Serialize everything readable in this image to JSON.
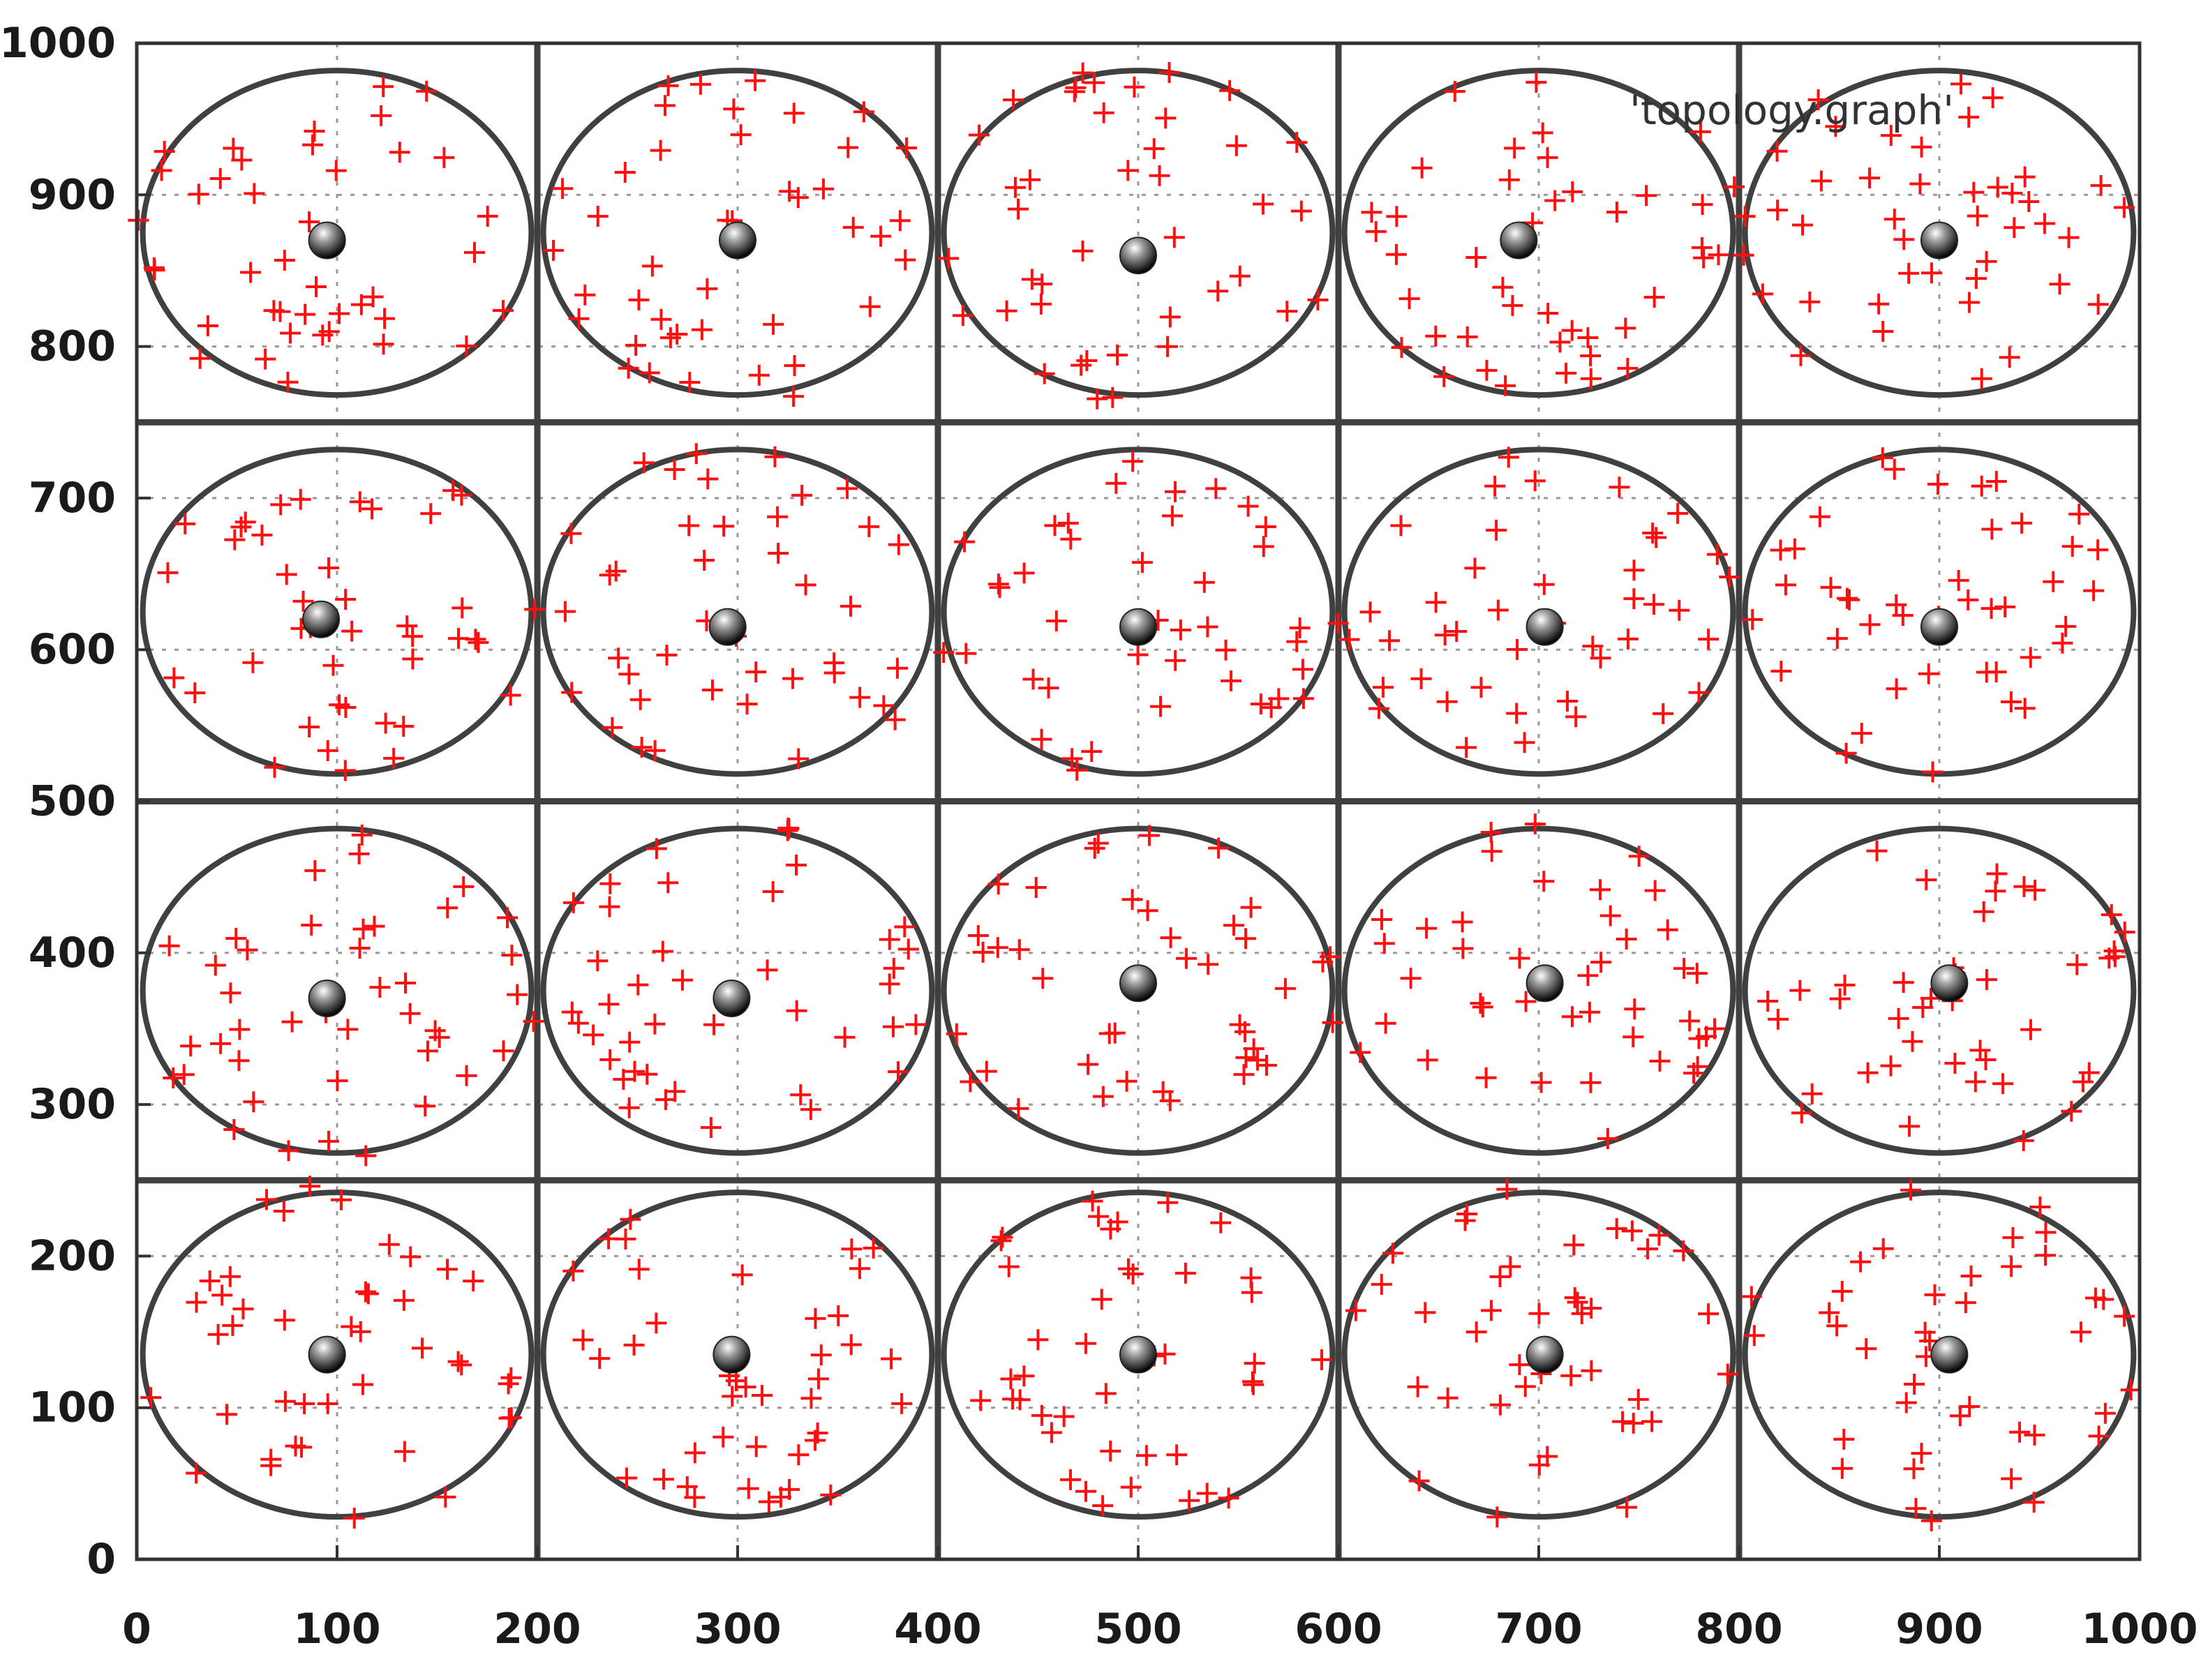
{
  "chart_data": {
    "type": "scatter",
    "legend": "'topology.graph'",
    "legend_position": "top-right",
    "xlim": [
      0,
      1000
    ],
    "ylim": [
      0,
      1000
    ],
    "x_ticks": [
      0,
      100,
      200,
      300,
      400,
      500,
      600,
      700,
      800,
      900,
      1000
    ],
    "y_ticks": [
      0,
      100,
      200,
      300,
      400,
      500,
      600,
      700,
      800,
      900,
      1000
    ],
    "x_tick_labels": [
      "0",
      "100",
      "200",
      "300",
      "400",
      "500",
      "600",
      "700",
      "800",
      "900",
      "1000"
    ],
    "y_tick_labels": [
      "0",
      "100",
      "200",
      "300",
      "400",
      "500",
      "600",
      "700",
      "800",
      "900",
      "1000"
    ],
    "grid": true,
    "colors": {
      "points": "#ff1010",
      "circles": "#404040",
      "partitions": "#404040",
      "grid": "#999999",
      "axes": "#333333"
    },
    "partition_x": [
      200,
      400,
      600,
      800
    ],
    "partition_y": [
      250,
      500,
      750
    ],
    "cluster_heads": [
      {
        "x": 95,
        "y": 870
      },
      {
        "x": 300,
        "y": 870
      },
      {
        "x": 500,
        "y": 860
      },
      {
        "x": 690,
        "y": 870
      },
      {
        "x": 900,
        "y": 870
      },
      {
        "x": 92,
        "y": 620
      },
      {
        "x": 295,
        "y": 615
      },
      {
        "x": 500,
        "y": 615
      },
      {
        "x": 703,
        "y": 615
      },
      {
        "x": 900,
        "y": 615
      },
      {
        "x": 95,
        "y": 370
      },
      {
        "x": 297,
        "y": 370
      },
      {
        "x": 500,
        "y": 380
      },
      {
        "x": 703,
        "y": 380
      },
      {
        "x": 905,
        "y": 380
      },
      {
        "x": 95,
        "y": 135
      },
      {
        "x": 297,
        "y": 135
      },
      {
        "x": 500,
        "y": 135
      },
      {
        "x": 703,
        "y": 135
      },
      {
        "x": 905,
        "y": 135
      }
    ],
    "cluster_radius_x": 97,
    "cluster_radius_y": 107,
    "cells": [
      {
        "cx": 100,
        "cy": 875
      },
      {
        "cx": 300,
        "cy": 875
      },
      {
        "cx": 500,
        "cy": 875
      },
      {
        "cx": 700,
        "cy": 875
      },
      {
        "cx": 900,
        "cy": 875
      },
      {
        "cx": 100,
        "cy": 625
      },
      {
        "cx": 300,
        "cy": 625
      },
      {
        "cx": 500,
        "cy": 625
      },
      {
        "cx": 700,
        "cy": 625
      },
      {
        "cx": 900,
        "cy": 625
      },
      {
        "cx": 100,
        "cy": 375
      },
      {
        "cx": 300,
        "cy": 375
      },
      {
        "cx": 500,
        "cy": 375
      },
      {
        "cx": 700,
        "cy": 375
      },
      {
        "cx": 900,
        "cy": 375
      },
      {
        "cx": 100,
        "cy": 135
      },
      {
        "cx": 300,
        "cy": 135
      },
      {
        "cx": 500,
        "cy": 135
      },
      {
        "cx": 700,
        "cy": 135
      },
      {
        "cx": 900,
        "cy": 135
      }
    ],
    "points_per_cell": 42
  }
}
